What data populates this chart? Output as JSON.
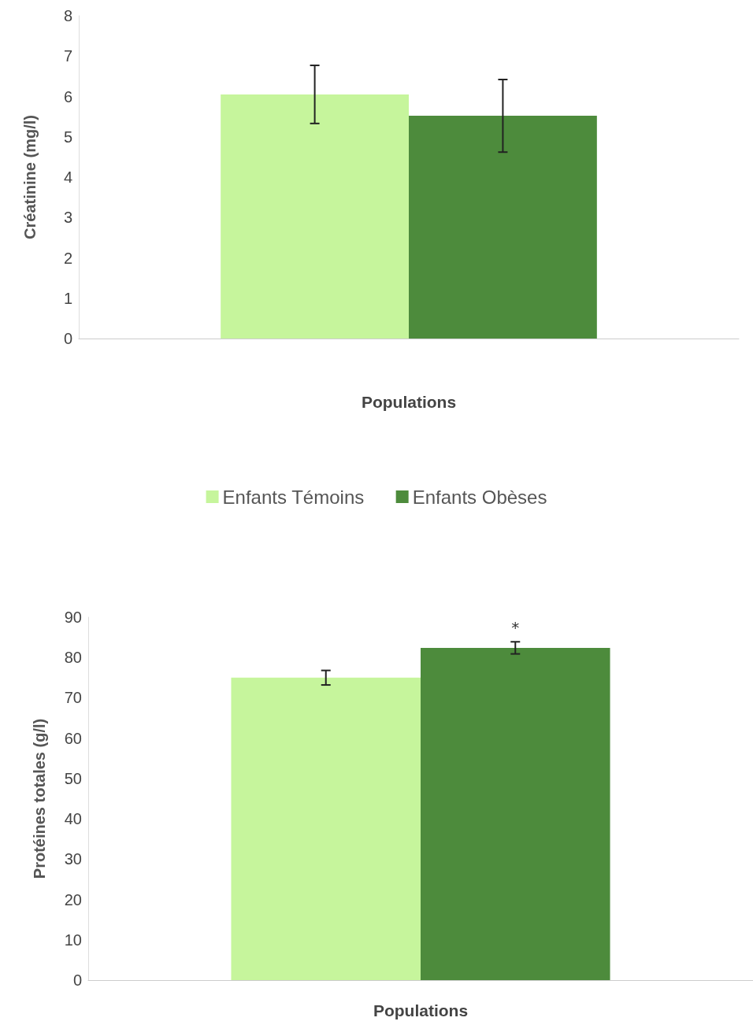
{
  "chart_data": [
    {
      "type": "bar",
      "categories": [
        null
      ],
      "xlabel": "Populations",
      "ylabel": "Créatinine (mg/l)",
      "ylim": [
        0,
        8
      ],
      "yticks": [
        0,
        1,
        2,
        3,
        4,
        5,
        6,
        7,
        8
      ],
      "grid": false,
      "legend": "bottom",
      "series": [
        {
          "name": "Enfants Témoins",
          "color": "#c6f59c",
          "values": [
            6.05
          ],
          "errors": [
            0.72
          ]
        },
        {
          "name": "Enfants Obèses",
          "color": "#4d8b3c",
          "values": [
            5.52
          ],
          "errors": [
            0.9
          ]
        }
      ]
    },
    {
      "type": "bar",
      "categories": [
        null
      ],
      "xlabel": "Populations",
      "ylabel": "Protéines totales (g/l)",
      "ylim": [
        0,
        90
      ],
      "yticks": [
        0,
        10,
        20,
        30,
        40,
        50,
        60,
        70,
        80,
        90
      ],
      "grid": false,
      "legend": false,
      "annotations": [
        "*"
      ],
      "series": [
        {
          "color": "#c6f59c",
          "values": [
            75.0
          ],
          "errors": [
            1.8
          ]
        },
        {
          "color": "#4d8b3c",
          "values": [
            82.4
          ],
          "errors": [
            1.5
          ]
        }
      ]
    }
  ]
}
